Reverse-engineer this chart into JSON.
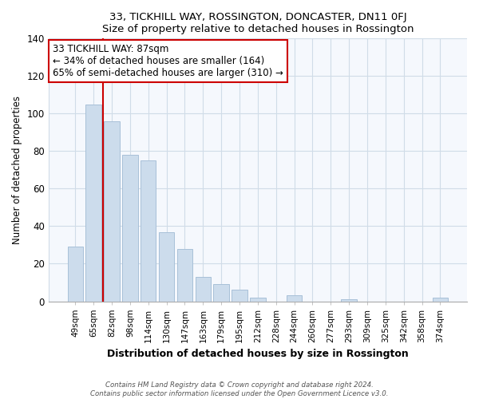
{
  "title": "33, TICKHILL WAY, ROSSINGTON, DONCASTER, DN11 0FJ",
  "subtitle": "Size of property relative to detached houses in Rossington",
  "xlabel": "Distribution of detached houses by size in Rossington",
  "ylabel": "Number of detached properties",
  "bar_labels": [
    "49sqm",
    "65sqm",
    "82sqm",
    "98sqm",
    "114sqm",
    "130sqm",
    "147sqm",
    "163sqm",
    "179sqm",
    "195sqm",
    "212sqm",
    "228sqm",
    "244sqm",
    "260sqm",
    "277sqm",
    "293sqm",
    "309sqm",
    "325sqm",
    "342sqm",
    "358sqm",
    "374sqm"
  ],
  "bar_values": [
    29,
    105,
    96,
    78,
    75,
    37,
    28,
    13,
    9,
    6,
    2,
    0,
    3,
    0,
    0,
    1,
    0,
    0,
    0,
    0,
    2
  ],
  "bar_color": "#ccdcec",
  "bar_edge_color": "#a8c0d8",
  "vline_color": "#cc0000",
  "ylim": [
    0,
    140
  ],
  "yticks": [
    0,
    20,
    40,
    60,
    80,
    100,
    120,
    140
  ],
  "annotation_title": "33 TICKHILL WAY: 87sqm",
  "annotation_line1": "← 34% of detached houses are smaller (164)",
  "annotation_line2": "65% of semi-detached houses are larger (310) →",
  "annotation_box_facecolor": "#ffffff",
  "annotation_box_edgecolor": "#cc0000",
  "footer1": "Contains HM Land Registry data © Crown copyright and database right 2024.",
  "footer2": "Contains public sector information licensed under the Open Government Licence v3.0.",
  "background_color": "#ffffff",
  "plot_background": "#f5f8fd",
  "grid_color": "#d0dce8"
}
